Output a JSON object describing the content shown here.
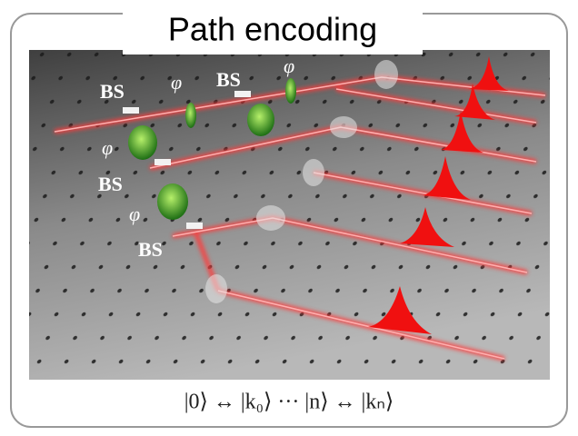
{
  "title": "Path encoding",
  "labels": {
    "bs": [
      "BS",
      "BS",
      "BS"
    ],
    "phi": [
      "φ",
      "φ",
      "φ",
      "φ"
    ]
  },
  "formula": "|0⟩ ↔ |k₀⟩ ··· |n⟩ ↔ |kₙ⟩"
}
